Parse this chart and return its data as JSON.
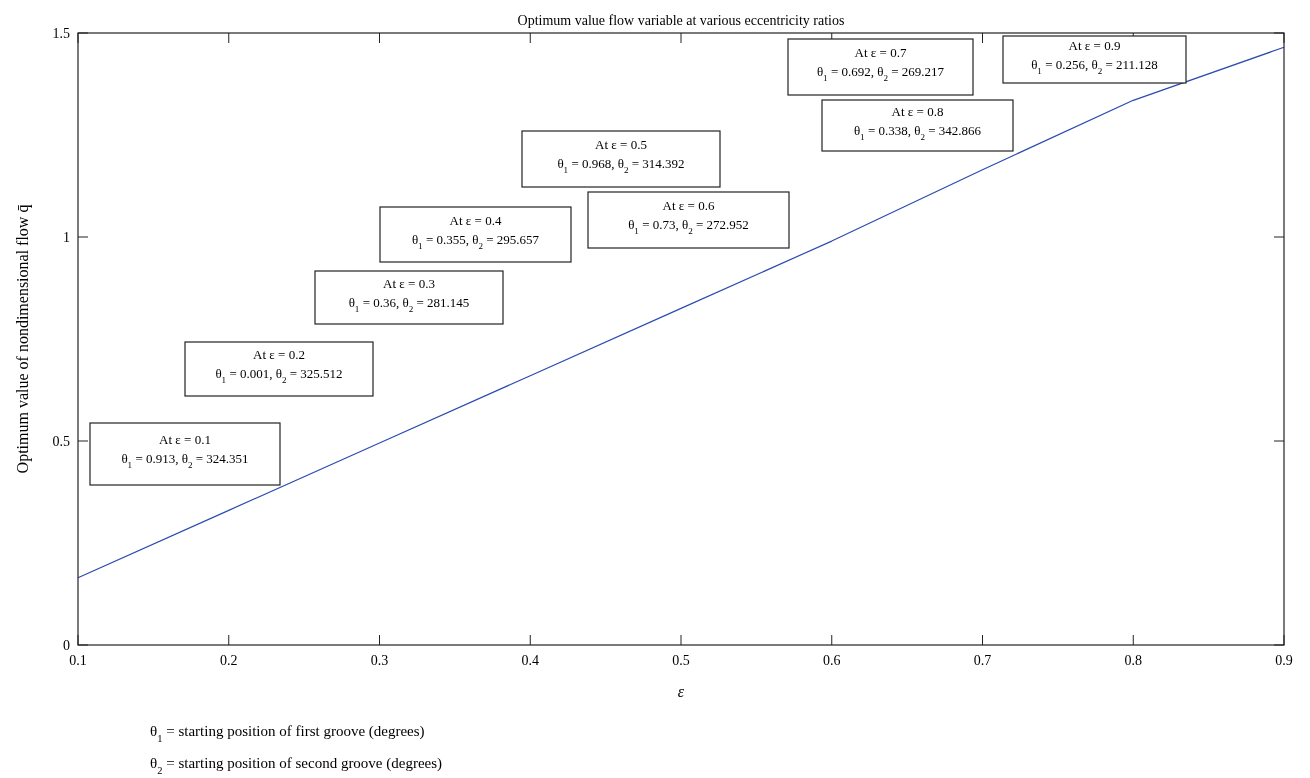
{
  "chart_data": {
    "type": "line",
    "title": "Optimum value flow variable at various eccentricity ratios",
    "xlabel": "ε",
    "ylabel": "Optimum value of nondimensional flow q̄",
    "x": [
      0.1,
      0.2,
      0.3,
      0.4,
      0.5,
      0.6,
      0.7,
      0.8,
      0.9
    ],
    "series": [
      {
        "color": "#2b4bb0",
        "values": [
          0.165,
          0.33,
          0.495,
          0.66,
          0.825,
          0.99,
          1.165,
          1.335,
          1.465
        ]
      }
    ],
    "xlim": [
      0.1,
      0.9
    ],
    "xticks": [
      0.1,
      0.2,
      0.3,
      0.4,
      0.5,
      0.6,
      0.7,
      0.8,
      0.9
    ],
    "ylim": [
      0,
      1.5
    ],
    "yticks": [
      0,
      0.5,
      1,
      1.5
    ],
    "grid": false,
    "marker": "none",
    "line_style": "solid",
    "annotations": [
      "At ε = 0.1\nθ$_{1}$ = 0.913, θ$_{2}$ = 324.351",
      "At ε = 0.2\nθ$_{1}$ = 0.001, θ$_{2}$ = 325.512",
      "At ε = 0.3\nθ$_{1}$ = 0.36, θ$_{2}$ = 281.145",
      "At ε = 0.4\nθ$_{1}$ = 0.355, θ$_{2}$ = 295.657",
      "At ε = 0.5\nθ$_{1}$ = 0.968, θ$_{2}$ = 314.392",
      "At ε = 0.6\nθ$_{1}$ = 0.73, θ$_{2}$ = 272.952",
      "At ε = 0.7\nθ$_{1}$ = 0.692, θ$_{2}$ = 269.217",
      "At ε = 0.8\nθ$_{1}$ = 0.338, θ$_{2}$ = 342.866",
      "At ε = 0.9\nθ$_{1}$ = 0.256, θ$_{2}$ = 211.128",
      "θ$_{1}$ = starting position of first groove (degrees)",
      "θ$_{2}$ = starting position of second groove (degrees)"
    ]
  }
}
